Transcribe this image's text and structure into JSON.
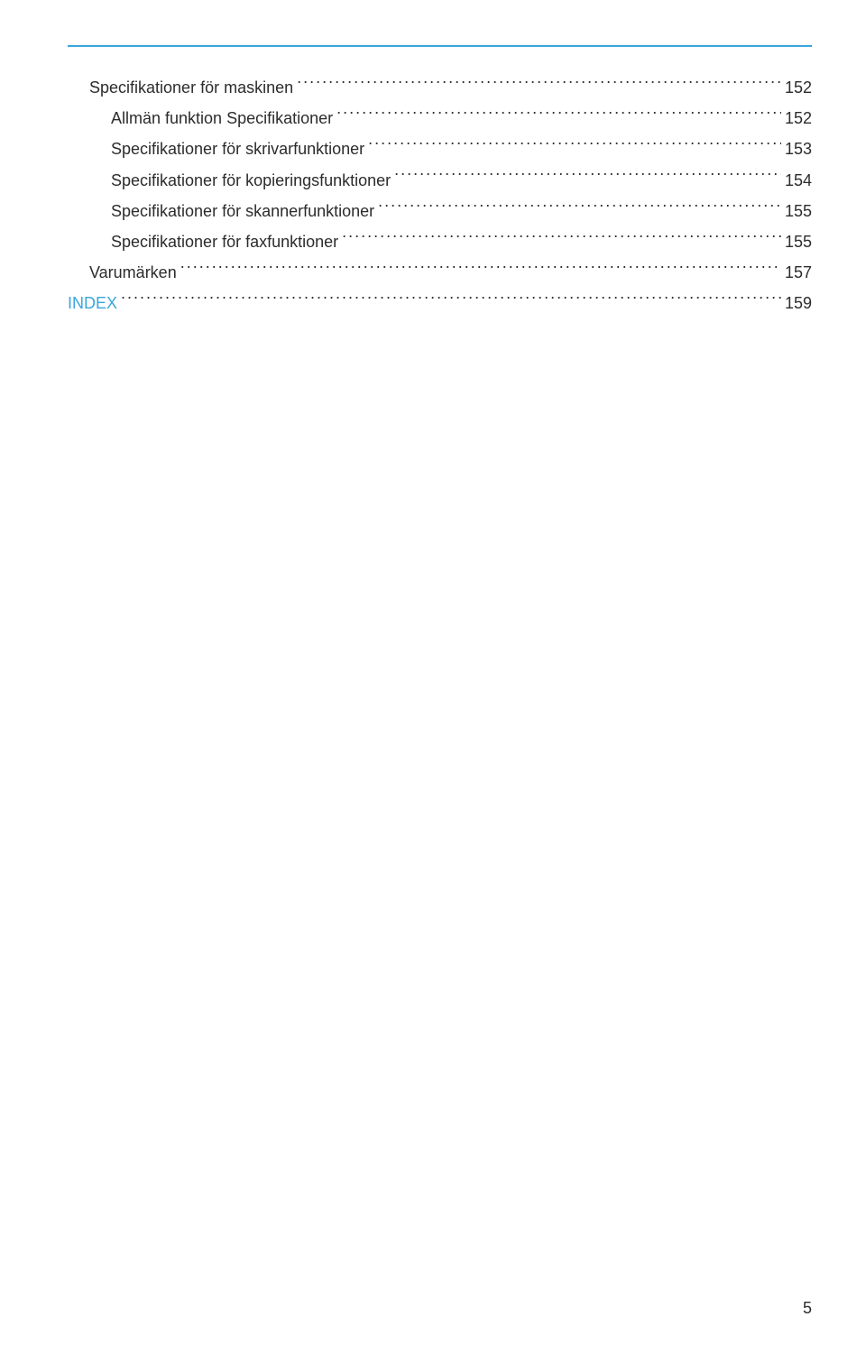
{
  "colors": {
    "accent": "#3aa6dd",
    "text": "#2c2c2c",
    "background": "#ffffff"
  },
  "typography": {
    "body_fontsize_pt": 13,
    "line_height": 1.9
  },
  "toc": {
    "entries": [
      {
        "label": "Specifikationer för maskinen",
        "page": "152",
        "indent": 1,
        "accent": false
      },
      {
        "label": "Allmän funktion Specifikationer",
        "page": "152",
        "indent": 2,
        "accent": false
      },
      {
        "label": "Specifikationer för skrivarfunktioner",
        "page": "153",
        "indent": 2,
        "accent": false
      },
      {
        "label": "Specifikationer för kopieringsfunktioner",
        "page": "154",
        "indent": 2,
        "accent": false
      },
      {
        "label": "Specifikationer för skannerfunktioner",
        "page": "155",
        "indent": 2,
        "accent": false
      },
      {
        "label": "Specifikationer för faxfunktioner",
        "page": "155",
        "indent": 2,
        "accent": false
      },
      {
        "label": "Varumärken",
        "page": "157",
        "indent": 1,
        "accent": false
      },
      {
        "label": "INDEX",
        "page": "159",
        "indent": 0,
        "accent": true
      }
    ]
  },
  "pageNumber": "5"
}
